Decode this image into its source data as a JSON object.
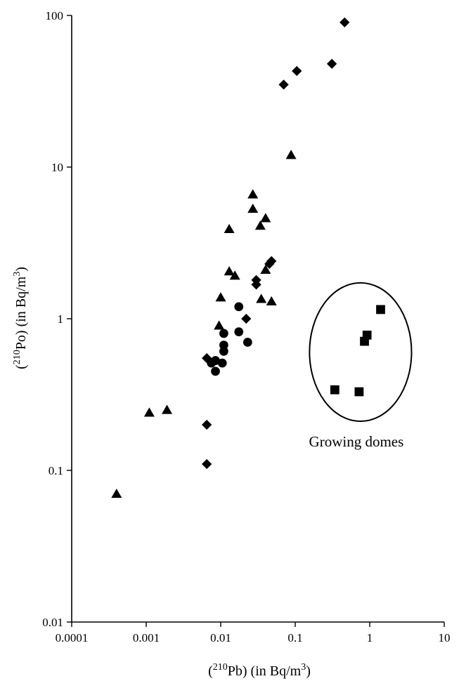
{
  "chart_data": {
    "type": "scatter",
    "title": "",
    "x_scale": "log",
    "y_scale": "log",
    "xlim": [
      0.0001,
      10
    ],
    "ylim": [
      0.01,
      100
    ],
    "x_ticks": [
      "0.0001",
      "0.001",
      "0.01",
      "0.1",
      "1",
      "10"
    ],
    "y_ticks": [
      "0.01",
      "0.1",
      "1",
      "10",
      "100"
    ],
    "xlabel": {
      "open": "(",
      "sup": "210",
      "main": "Pb)  (in Bq/m",
      "unit_sup": "3",
      "close": ")"
    },
    "ylabel": {
      "open": "(",
      "sup": "210",
      "main": "Po)  (in Bq/m",
      "unit_sup": "3",
      "close": ")"
    },
    "grid": false,
    "legend": "none",
    "series": [
      {
        "marker": "triangle",
        "points": [
          [
            0.0004,
            0.07
          ],
          [
            0.0011,
            0.24
          ],
          [
            0.0019,
            0.25
          ],
          [
            0.0095,
            0.9
          ],
          [
            0.01,
            1.38
          ],
          [
            0.013,
            3.9
          ],
          [
            0.013,
            2.05
          ],
          [
            0.0155,
            1.92
          ],
          [
            0.027,
            6.6
          ],
          [
            0.027,
            5.3
          ],
          [
            0.034,
            4.1
          ],
          [
            0.035,
            1.35
          ],
          [
            0.04,
            4.6
          ],
          [
            0.04,
            2.1
          ],
          [
            0.048,
            1.3
          ],
          [
            0.088,
            12.0
          ]
        ]
      },
      {
        "marker": "diamond",
        "points": [
          [
            0.0065,
            0.55
          ],
          [
            0.0065,
            0.2
          ],
          [
            0.0065,
            0.11
          ],
          [
            0.022,
            1.0
          ],
          [
            0.03,
            1.8
          ],
          [
            0.03,
            1.68
          ],
          [
            0.045,
            2.3
          ],
          [
            0.048,
            2.4
          ],
          [
            0.07,
            35
          ],
          [
            0.105,
            43
          ],
          [
            0.31,
            48
          ],
          [
            0.46,
            90
          ]
        ]
      },
      {
        "marker": "circle",
        "points": [
          [
            0.0075,
            0.51
          ],
          [
            0.0085,
            0.53
          ],
          [
            0.0085,
            0.45
          ],
          [
            0.0105,
            0.51
          ],
          [
            0.011,
            0.8
          ],
          [
            0.011,
            0.67
          ],
          [
            0.011,
            0.61
          ],
          [
            0.0175,
            1.2
          ],
          [
            0.0175,
            0.82
          ],
          [
            0.023,
            0.7
          ]
        ]
      },
      {
        "marker": "square",
        "points": [
          [
            0.34,
            0.34
          ],
          [
            0.72,
            0.33
          ],
          [
            0.85,
            0.71
          ],
          [
            0.92,
            0.78
          ],
          [
            1.4,
            1.15
          ]
        ]
      }
    ],
    "annotations": [
      {
        "text": "Growing domes",
        "encloses": "square",
        "shape": "ellipse"
      }
    ]
  }
}
